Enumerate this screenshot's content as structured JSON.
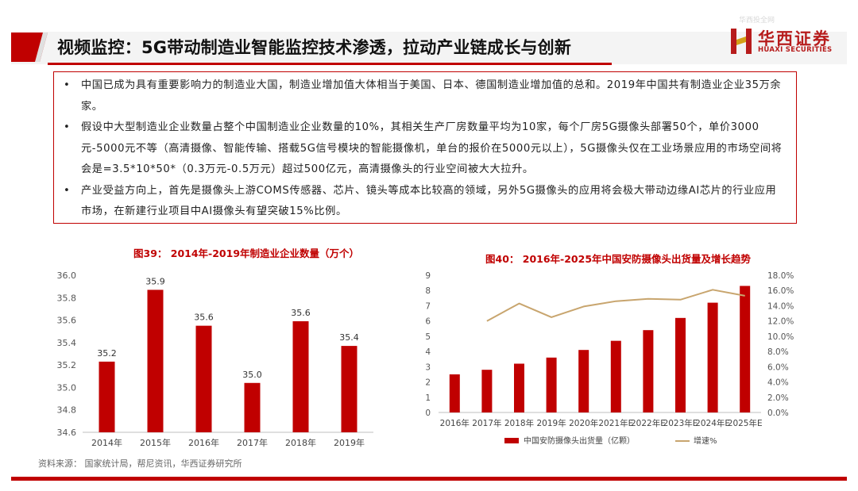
{
  "header": {
    "title": "视频监控：5G带动制造业智能监控技术渗透，拉动产业链成长与创新",
    "logo_cn": "华西证券",
    "logo_en": "HUAXI SECURITIES",
    "watermark": "华西投全网",
    "accent_color": "#c00000"
  },
  "bullets": [
    "中国已成为具有重要影响力的制造业大国，制造业增加值大体相当于美国、日本、德国制造业增加值的总和。2019年中国共有制造业企业35万余家。",
    "假设中大型制造业企业数量占整个中国制造业企业数量的10%，其相关生产厂房数量平均为10家，每个厂房5G摄像头部署50个，单价3000元-5000元不等（高清摄像、智能传输、搭载5G信号模块的智能摄像机，单台的报价在5000元以上），5G摄像头仅在工业场景应用的市场空间将会是=3.5*10*50*（0.3万元-0.5万元）超过500亿元，高清摄像头的行业空间被大大拉升。",
    "产业受益方向上，首先是摄像头上游COMS传感器、芯片、镜头等成本比较高的领域，另外5G摄像头的应用将会极大带动边缘AI芯片的行业应用市场，在新建行业项目中AI摄像头有望突破15%比例。"
  ],
  "bullet_symbol": "•",
  "chart_data": [
    {
      "type": "bar",
      "title": "图39： 2014年-2019年制造业企业数量（万个）",
      "categories": [
        "2014年",
        "2015年",
        "2016年",
        "2017年",
        "2018年",
        "2019年"
      ],
      "values": [
        35.2,
        35.9,
        35.6,
        35.0,
        35.6,
        35.4
      ],
      "data_labels": [
        "35.2",
        "35.9",
        "35.6",
        "35.0",
        "35.6",
        "35.4"
      ],
      "bar_values_exact": [
        35.23,
        35.87,
        35.55,
        35.04,
        35.59,
        35.37
      ],
      "ylim": [
        34.6,
        36.0
      ],
      "yticks": [
        "34.6",
        "34.8",
        "35.0",
        "35.2",
        "35.4",
        "35.6",
        "35.8",
        "36.0"
      ],
      "color": "#c00000",
      "grid": false
    },
    {
      "type": "bar+line",
      "title": "图40： 2016年-2025年中国安防摄像头出货量及增长趋势",
      "categories": [
        "2016年",
        "2017年",
        "2018年",
        "2019年",
        "2020年",
        "2021年E",
        "2022年E",
        "2023年E",
        "2024年E",
        "2025年E"
      ],
      "series": [
        {
          "name": "中国安防摄像头出货量（亿颗）",
          "type": "bar",
          "axis": "left",
          "color": "#c00000",
          "values": [
            2.5,
            2.8,
            3.2,
            3.6,
            4.1,
            4.7,
            5.4,
            6.2,
            7.2,
            8.3
          ]
        },
        {
          "name": "增速%",
          "type": "line",
          "axis": "right",
          "color": "#c8a56e",
          "values": [
            null,
            12.0,
            14.3,
            12.5,
            13.9,
            14.6,
            14.9,
            14.8,
            16.1,
            15.3
          ]
        }
      ],
      "ylim_left": [
        0,
        9
      ],
      "yticks_left": [
        "0",
        "1",
        "2",
        "3",
        "4",
        "5",
        "6",
        "7",
        "8",
        "9"
      ],
      "ylim_right": [
        0,
        18
      ],
      "yticks_right": [
        "0.0%",
        "2.0%",
        "4.0%",
        "6.0%",
        "8.0%",
        "10.0%",
        "12.0%",
        "14.0%",
        "16.0%",
        "18.0%"
      ],
      "legend_position": "bottom"
    }
  ],
  "source": "资料来源： 国家统计局，帮尼资讯，华西证券研究所"
}
